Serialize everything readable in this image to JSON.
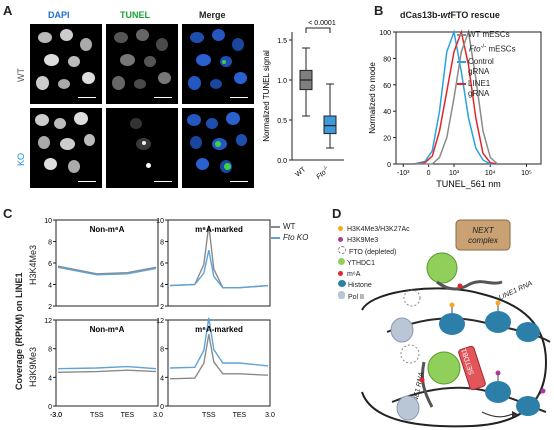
{
  "panels": {
    "A": {
      "letter": "A",
      "col_headers": [
        {
          "text": "DAPI",
          "color": "#1f6fd0"
        },
        {
          "text": "TUNEL",
          "color": "#1aa33a"
        },
        {
          "text": "Merge",
          "color": "#222222"
        }
      ],
      "row_labels": [
        {
          "text": "WT",
          "color": "#555555"
        },
        {
          "text": "KO",
          "color": "#1c8fd6"
        }
      ],
      "box": {
        "ylabel": "Normalized TUNEL signal",
        "pvalue": "< 0.0001",
        "ylim": [
          0,
          1.6
        ],
        "yticks": [
          "0.0",
          "0.5",
          "1.0",
          "1.5"
        ],
        "groups": [
          {
            "label": "WT",
            "min": 0.55,
            "q1": 0.88,
            "median": 1.0,
            "q3": 1.12,
            "max": 1.4,
            "color": "#7f7f7f"
          },
          {
            "label": "Fto-/-",
            "label_main": "Fto",
            "label_sup": "-/-",
            "min": 0.15,
            "q1": 0.33,
            "median": 0.43,
            "q3": 0.55,
            "max": 0.95,
            "color": "#3d9ad9"
          }
        ]
      }
    },
    "B": {
      "letter": "B",
      "title_pre": "dCas13b-",
      "title_ital": "wt",
      "title_post": "FTO rescue",
      "ylabel": "Normalized to mode",
      "xlabel": "TUNEL_561 nm",
      "yticks": [
        "0",
        "20",
        "40",
        "60",
        "80",
        "100"
      ],
      "xticks": [
        "-10³",
        "0",
        "10³",
        "10⁴",
        "10⁵"
      ],
      "legend": [
        {
          "text": "WT mESCs",
          "color": "#888888"
        },
        {
          "text_ital": "Fto",
          "text_sup": "-/-",
          "text_post": " mESCs",
          "color": "#888888"
        },
        {
          "text": "Control gRNA",
          "line1": "Control",
          "line2": "gRNA",
          "color": "#29a3e0"
        },
        {
          "text": "LINE1 gRNA",
          "line1": "LINE1",
          "line2": "gRNA",
          "color": "#e0262b"
        }
      ]
    },
    "C": {
      "letter": "C",
      "ylabel": "Coverage (RPKM) on LINE1",
      "row_labels": [
        "H3K4Me3",
        "H3K9Me3"
      ],
      "subtitles": [
        "Non-m⁶A",
        "m⁶A-marked",
        "Non-m⁶A",
        "m⁶A-marked"
      ],
      "legend": [
        {
          "text": "WT",
          "color": "#8a8a8a"
        },
        {
          "text": "Fto KO",
          "color": "#5fa3d8"
        }
      ],
      "xticks": [
        "-3.0",
        "TSS",
        "TES",
        "3.0",
        "TSS",
        "TES",
        "3.0"
      ],
      "top_yticks": [
        "2",
        "4",
        "6",
        "8",
        "10"
      ],
      "bottom_yticks": [
        "0",
        "4",
        "8",
        "12"
      ]
    },
    "D": {
      "letter": "D",
      "legend": [
        {
          "text": "H3K4Me3/H3K27Ac",
          "icon": "orange-lollipop-icon",
          "color": "#f5a623"
        },
        {
          "text": "H3K9Me3",
          "icon": "purple-lollipop-icon",
          "color": "#b03a9a"
        },
        {
          "text": "FTO (depleted)",
          "icon": "dashed-circle-icon",
          "color": "#888888"
        },
        {
          "text": "YTHDC1",
          "icon": "green-circle-icon",
          "color": "#8fcf5a"
        },
        {
          "text": "m⁶A",
          "icon": "red-lollipop-icon",
          "color": "#e0262b"
        },
        {
          "text": "Histone",
          "icon": "histone-icon",
          "color": "#2c7fa8"
        },
        {
          "text": "Pol II",
          "icon": "pol-ii-icon",
          "color": "#b8c6d6"
        }
      ],
      "next_complex": "NEXT complex",
      "setdb1": "SETDB1",
      "line1_rna": "LINE1 RNA"
    }
  },
  "chart_data": [
    {
      "type": "box",
      "title": "",
      "xlabel": "",
      "ylabel": "Normalized TUNEL signal",
      "ylim": [
        0,
        1.6
      ],
      "categories": [
        "WT",
        "Fto-/-"
      ],
      "series": [
        {
          "name": "WT",
          "min": 0.55,
          "q1": 0.88,
          "median": 1.0,
          "q3": 1.12,
          "max": 1.4
        },
        {
          "name": "Fto-/-",
          "min": 0.15,
          "q1": 0.33,
          "median": 0.43,
          "q3": 0.55,
          "max": 0.95
        }
      ],
      "annotation": "< 0.0001"
    },
    {
      "type": "line",
      "title": "dCas13b-wtFTO rescue",
      "xlabel": "TUNEL_561 nm",
      "ylabel": "Normalized to mode",
      "ylim": [
        0,
        100
      ],
      "x": [
        1.5,
        1.8,
        2.0,
        2.2,
        2.4,
        2.6,
        2.8,
        3.0,
        3.2,
        3.4,
        3.6,
        3.8
      ],
      "series": [
        {
          "name": "Control gRNA",
          "values": [
            0,
            2,
            10,
            40,
            85,
            100,
            70,
            35,
            12,
            3,
            0,
            0
          ]
        },
        {
          "name": "LINE1 gRNA",
          "values": [
            0,
            1,
            6,
            25,
            55,
            85,
            100,
            75,
            35,
            8,
            1,
            0
          ]
        },
        {
          "name": "WT mESCs",
          "values": [
            0,
            0,
            0,
            5,
            20,
            50,
            85,
            100,
            65,
            25,
            5,
            0
          ]
        }
      ]
    },
    {
      "type": "line",
      "title": "H3K4Me3 Non-m6A",
      "xlabel": "",
      "ylabel": "Coverage (RPKM) on LINE1",
      "ylim": [
        2,
        10
      ],
      "x": [
        "-3.0",
        "TSS",
        "TES",
        "3.0"
      ],
      "series": [
        {
          "name": "WT",
          "values": [
            5.7,
            5.0,
            5.1,
            5.6
          ]
        },
        {
          "name": "Fto KO",
          "values": [
            5.6,
            4.9,
            5.0,
            5.5
          ]
        }
      ]
    },
    {
      "type": "line",
      "title": "H3K4Me3 m6A-marked",
      "xlabel": "",
      "ylabel": "Coverage (RPKM) on LINE1",
      "ylim": [
        2,
        10
      ],
      "x": [
        "-3.0",
        "TSS",
        "TES",
        "3.0"
      ],
      "series": [
        {
          "name": "WT",
          "values": [
            3.9,
            9.5,
            3.7,
            3.9
          ]
        },
        {
          "name": "Fto KO",
          "values": [
            3.9,
            7.2,
            3.7,
            3.9
          ]
        }
      ]
    },
    {
      "type": "line",
      "title": "H3K9Me3 Non-m6A",
      "xlabel": "",
      "ylabel": "Coverage (RPKM) on LINE1",
      "ylim": [
        0,
        12
      ],
      "x": [
        "-3.0",
        "TSS",
        "TES",
        "3.0"
      ],
      "series": [
        {
          "name": "WT",
          "values": [
            4.7,
            4.8,
            5.0,
            4.8
          ]
        },
        {
          "name": "Fto KO",
          "values": [
            5.2,
            5.3,
            5.5,
            5.2
          ]
        }
      ]
    },
    {
      "type": "line",
      "title": "H3K9Me3 m6A-marked",
      "xlabel": "",
      "ylabel": "Coverage (RPKM) on LINE1",
      "ylim": [
        0,
        12
      ],
      "x": [
        "-3.0",
        "TSS",
        "TES",
        "3.0"
      ],
      "series": [
        {
          "name": "WT",
          "values": [
            3.8,
            10.0,
            4.5,
            4.3
          ]
        },
        {
          "name": "Fto KO",
          "values": [
            5.3,
            12.3,
            6.0,
            5.6
          ]
        }
      ]
    }
  ]
}
